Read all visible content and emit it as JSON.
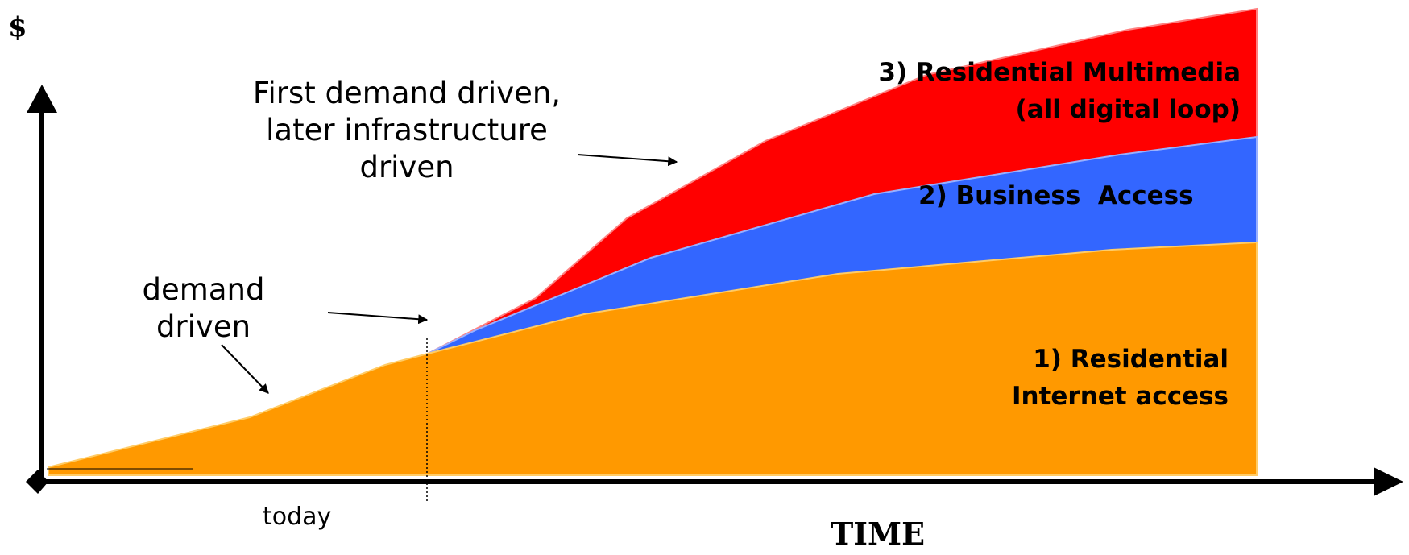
{
  "axes": {
    "y_label": "$",
    "x_label": "TIME"
  },
  "markers": {
    "today_label": "today"
  },
  "annotations": {
    "demand_driven": "demand driven",
    "infrastructure_driven": "First demand driven, later infrastructure driven"
  },
  "layers": [
    {
      "id": "l1",
      "label": "1) Residential Internet access",
      "color": "#FF9900"
    },
    {
      "id": "l2",
      "label": "2) Business  Access",
      "color": "#3366FF"
    },
    {
      "id": "l3",
      "label": "3) Residential Multimedia (all digital loop)",
      "color": "#FF0000"
    }
  ]
}
